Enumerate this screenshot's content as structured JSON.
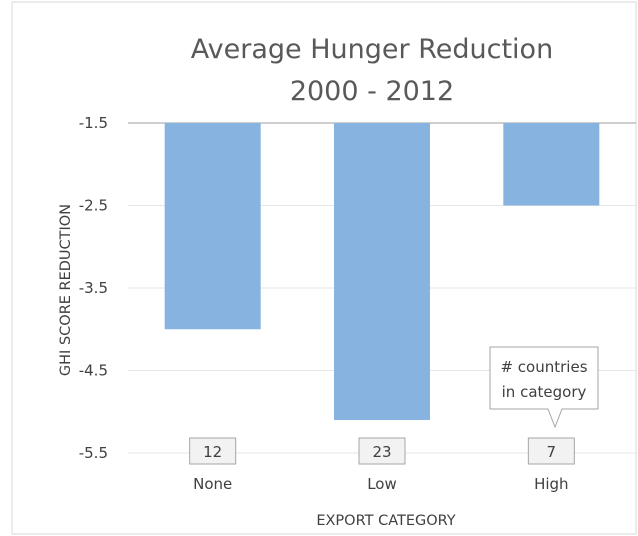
{
  "chart_data": {
    "type": "bar",
    "title": [
      "Average Hunger Reduction",
      "2000 - 2012"
    ],
    "xlabel": "EXPORT CATEGORY",
    "ylabel": "GHI SCORE REDUCTION",
    "categories": [
      "None",
      "Low",
      "High"
    ],
    "values": [
      -4.0,
      -5.1,
      -2.5
    ],
    "counts": [
      "12",
      "23",
      "7"
    ],
    "ylim": [
      -5.5,
      -1.5
    ],
    "yticks": [
      "-1.5",
      "-2.5",
      "-3.5",
      "-4.5",
      "-5.5"
    ],
    "grid": true,
    "bar_color": "#87b3e0",
    "annotation": [
      "# countries",
      "in category"
    ]
  }
}
